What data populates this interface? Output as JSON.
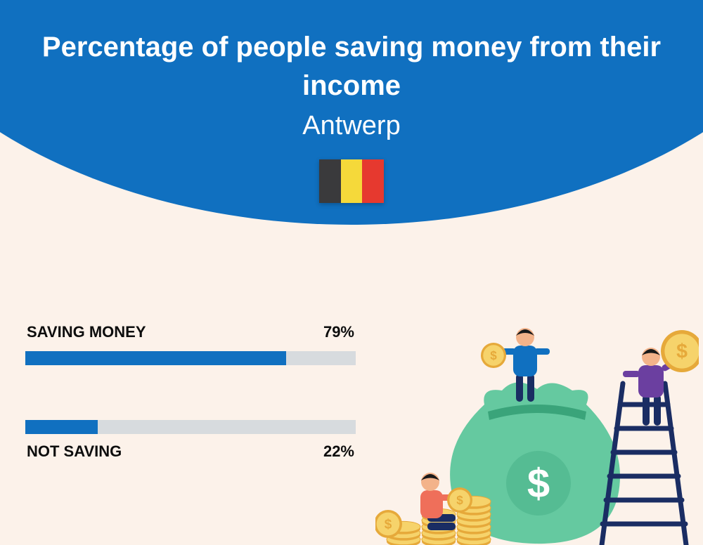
{
  "colors": {
    "page_bg": "#fcf2ea",
    "header_bg": "#1070c0",
    "title_text": "#ffffff",
    "bar_fill": "#1070c0",
    "bar_track": "#d7dbde",
    "label_text": "#0d0d0d"
  },
  "header": {
    "title": "Percentage of people saving money from their income",
    "subtitle": "Antwerp",
    "flag_colors": [
      "#3a3a3c",
      "#f5d93a",
      "#e6392f"
    ]
  },
  "bars": {
    "type": "bar",
    "items": [
      {
        "label": "SAVING MONEY",
        "value": 79,
        "value_text": "79%",
        "label_position": "top"
      },
      {
        "label": "NOT SAVING",
        "value": 22,
        "value_text": "22%",
        "label_position": "bottom"
      }
    ]
  },
  "illustration": {
    "bag_color": "#65c9a0",
    "bag_shadow": "#3aa47a",
    "coin_fill": "#f6d36b",
    "coin_edge": "#e6a93a",
    "ladder_color": "#1a2d63",
    "person1": {
      "shirt": "#1070c0",
      "pants": "#1a2d63",
      "skin": "#f3b38a",
      "hair": "#1a1a1a"
    },
    "person2": {
      "shirt": "#6b3fa0",
      "pants": "#1a2d63",
      "skin": "#f3b38a",
      "hair": "#1a1a1a"
    },
    "person3": {
      "shirt": "#ef6f5a",
      "pants": "#1a2d63",
      "skin": "#f3b38a",
      "hair": "#1a1a1a"
    }
  }
}
